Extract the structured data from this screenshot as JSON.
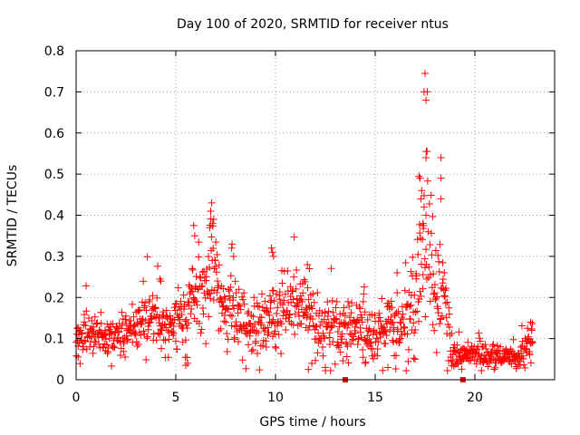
{
  "chart_data": {
    "type": "scatter",
    "title": "Day 100 of 2020, SRMTID for receiver ntus",
    "xlabel": "GPS time / hours",
    "ylabel": "SRMTID / TECUs",
    "xlim": [
      0,
      24
    ],
    "ylim": [
      0,
      0.8
    ],
    "xticks": [
      "0",
      "5",
      "10",
      "15",
      "20"
    ],
    "yticks": [
      "0",
      "0.1",
      "0.2",
      "0.3",
      "0.4",
      "0.5",
      "0.6",
      "0.7",
      "0.8"
    ],
    "grid": true,
    "marker": "plus",
    "color": "#ff0000",
    "profile": [
      [
        0.0,
        0.09,
        0.025
      ],
      [
        0.5,
        0.12,
        0.03
      ],
      [
        1.0,
        0.11,
        0.025
      ],
      [
        1.5,
        0.1,
        0.02
      ],
      [
        2.0,
        0.1,
        0.02
      ],
      [
        2.5,
        0.11,
        0.025
      ],
      [
        3.0,
        0.12,
        0.03
      ],
      [
        3.5,
        0.14,
        0.035
      ],
      [
        4.0,
        0.15,
        0.035
      ],
      [
        4.5,
        0.13,
        0.035
      ],
      [
        5.0,
        0.13,
        0.035
      ],
      [
        5.5,
        0.16,
        0.05
      ],
      [
        6.0,
        0.2,
        0.05
      ],
      [
        6.5,
        0.22,
        0.055
      ],
      [
        6.8,
        0.3,
        0.07
      ],
      [
        7.2,
        0.2,
        0.05
      ],
      [
        7.6,
        0.17,
        0.045
      ],
      [
        8.0,
        0.16,
        0.04
      ],
      [
        8.5,
        0.14,
        0.04
      ],
      [
        9.0,
        0.13,
        0.035
      ],
      [
        9.5,
        0.15,
        0.05
      ],
      [
        10.0,
        0.16,
        0.05
      ],
      [
        10.5,
        0.18,
        0.04
      ],
      [
        11.0,
        0.19,
        0.045
      ],
      [
        11.5,
        0.17,
        0.05
      ],
      [
        12.0,
        0.14,
        0.045
      ],
      [
        12.5,
        0.13,
        0.045
      ],
      [
        13.0,
        0.12,
        0.04
      ],
      [
        13.5,
        0.13,
        0.045
      ],
      [
        14.0,
        0.11,
        0.035
      ],
      [
        14.5,
        0.11,
        0.035
      ],
      [
        15.0,
        0.1,
        0.03
      ],
      [
        15.5,
        0.12,
        0.035
      ],
      [
        16.0,
        0.13,
        0.04
      ],
      [
        16.5,
        0.14,
        0.04
      ],
      [
        17.0,
        0.19,
        0.06
      ],
      [
        17.3,
        0.28,
        0.09
      ],
      [
        17.6,
        0.35,
        0.12
      ],
      [
        18.0,
        0.22,
        0.08
      ],
      [
        18.4,
        0.2,
        0.07
      ],
      [
        18.7,
        0.12,
        0.05
      ],
      [
        19.0,
        0.06,
        0.015
      ],
      [
        19.5,
        0.06,
        0.015
      ],
      [
        20.0,
        0.065,
        0.015
      ],
      [
        20.5,
        0.06,
        0.015
      ],
      [
        21.0,
        0.06,
        0.015
      ],
      [
        21.5,
        0.055,
        0.012
      ],
      [
        22.0,
        0.055,
        0.012
      ],
      [
        22.5,
        0.07,
        0.02
      ],
      [
        22.9,
        0.1,
        0.025
      ]
    ],
    "highlights": [
      [
        17.5,
        0.745
      ],
      [
        17.45,
        0.7
      ],
      [
        17.55,
        0.68
      ],
      [
        17.6,
        0.555
      ],
      [
        17.55,
        0.54
      ],
      [
        18.3,
        0.54
      ],
      [
        17.2,
        0.495
      ],
      [
        17.25,
        0.49
      ],
      [
        18.3,
        0.49
      ],
      [
        18.3,
        0.44
      ],
      [
        17.3,
        0.44
      ],
      [
        17.45,
        0.42
      ],
      [
        17.55,
        0.4
      ],
      [
        17.4,
        0.38
      ],
      [
        6.8,
        0.43
      ],
      [
        6.75,
        0.41
      ],
      [
        6.9,
        0.39
      ],
      [
        6.85,
        0.38
      ],
      [
        6.7,
        0.37
      ],
      [
        5.9,
        0.375
      ],
      [
        5.95,
        0.35
      ],
      [
        9.8,
        0.32
      ],
      [
        9.85,
        0.31
      ],
      [
        9.9,
        0.3
      ],
      [
        11.6,
        0.28
      ],
      [
        11.7,
        0.27
      ],
      [
        7.8,
        0.32
      ],
      [
        7.9,
        0.3
      ],
      [
        4.2,
        0.245
      ],
      [
        4.25,
        0.24
      ],
      [
        16.1,
        0.26
      ],
      [
        22.8,
        0.14
      ],
      [
        22.85,
        0.12
      ],
      [
        5.5,
        0.035
      ],
      [
        5.6,
        0.04
      ],
      [
        11.65,
        0.025
      ],
      [
        12.5,
        0.03
      ],
      [
        14.5,
        0.04
      ],
      [
        0.1,
        0.055
      ],
      [
        17.0,
        0.05
      ]
    ],
    "markers_at_zero": [
      13.5,
      19.4
    ],
    "count": 1150,
    "seed": 100
  }
}
